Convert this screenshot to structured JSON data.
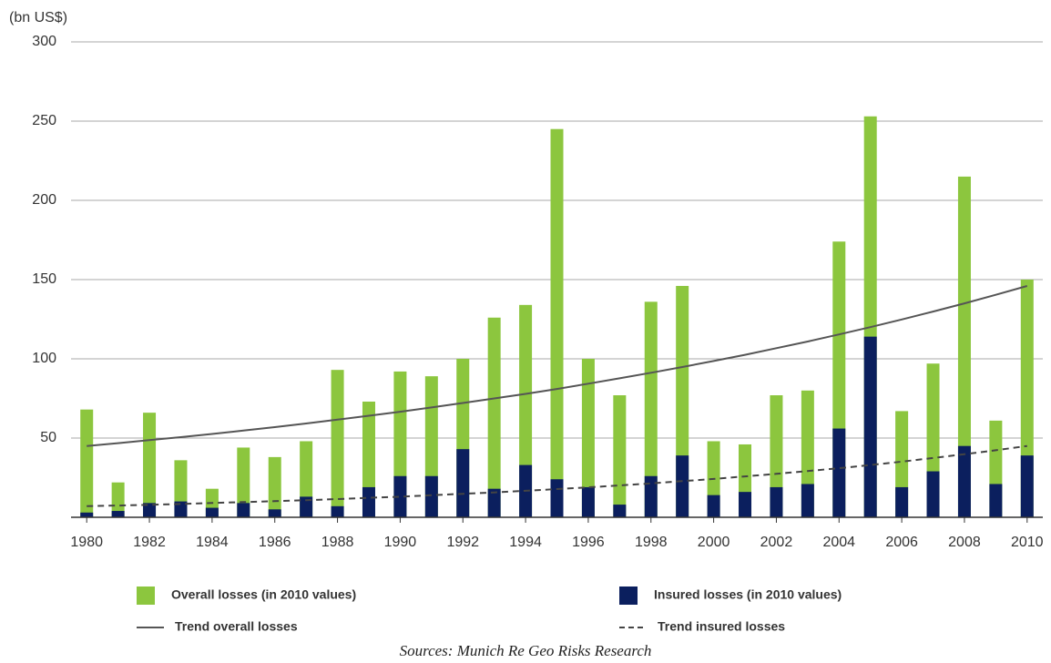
{
  "chart_data": {
    "type": "bar",
    "y_label": "(bn US$)",
    "source": "Sources: Munich Re Geo Risks Research",
    "x": [
      1980,
      1981,
      1982,
      1983,
      1984,
      1985,
      1986,
      1987,
      1988,
      1989,
      1990,
      1991,
      1992,
      1993,
      1994,
      1995,
      1996,
      1997,
      1998,
      1999,
      2000,
      2001,
      2002,
      2003,
      2004,
      2005,
      2006,
      2007,
      2008,
      2009,
      2010
    ],
    "xlim": [
      1979.5,
      2010.5
    ],
    "xticks": [
      1980,
      1982,
      1984,
      1986,
      1988,
      1990,
      1992,
      1994,
      1996,
      1998,
      2000,
      2002,
      2004,
      2006,
      2008,
      2010
    ],
    "ylim": [
      0,
      300
    ],
    "yticks": [
      50,
      100,
      150,
      200,
      250,
      300
    ],
    "grid": true,
    "series": [
      {
        "name": "Overall losses (in 2010 values)",
        "type": "bar",
        "color": "#8cc63e",
        "values": [
          68,
          22,
          66,
          36,
          18,
          44,
          38,
          48,
          93,
          73,
          92,
          89,
          100,
          126,
          134,
          245,
          100,
          77,
          136,
          146,
          48,
          46,
          77,
          80,
          174,
          253,
          67,
          97,
          215,
          61,
          150
        ]
      },
      {
        "name": "Insured losses (in 2010 values)",
        "type": "bar",
        "color": "#0b1f5e",
        "values": [
          3,
          4,
          9,
          10,
          6,
          9,
          5,
          13,
          7,
          19,
          26,
          26,
          43,
          18,
          33,
          24,
          19,
          8,
          26,
          39,
          14,
          16,
          19,
          21,
          56,
          114,
          19,
          29,
          45,
          21,
          39
        ]
      },
      {
        "name": "Trend overall losses",
        "type": "line",
        "color": "#555555",
        "dashed": false,
        "values": [
          45,
          46.8,
          48.7,
          50.6,
          52.6,
          54.7,
          56.9,
          59.2,
          61.6,
          64.1,
          66.6,
          69.3,
          72.1,
          75,
          77.9,
          81,
          84.3,
          87.7,
          91.2,
          94.8,
          98.6,
          102.5,
          106.7,
          110.9,
          115.4,
          120,
          124.8,
          129.8,
          135,
          140.4,
          146
        ]
      },
      {
        "name": "Trend insured losses",
        "type": "line",
        "color": "#444444",
        "dashed": true,
        "values": [
          7,
          7.4,
          7.9,
          8.4,
          9,
          9.6,
          10.2,
          10.8,
          11.5,
          12.3,
          13,
          13.9,
          14.8,
          15.7,
          16.7,
          17.8,
          18.9,
          20.1,
          21.4,
          22.8,
          24.2,
          25.8,
          27.4,
          29.2,
          31,
          33,
          35.1,
          37.4,
          39.8,
          42.3,
          45
        ]
      }
    ]
  }
}
